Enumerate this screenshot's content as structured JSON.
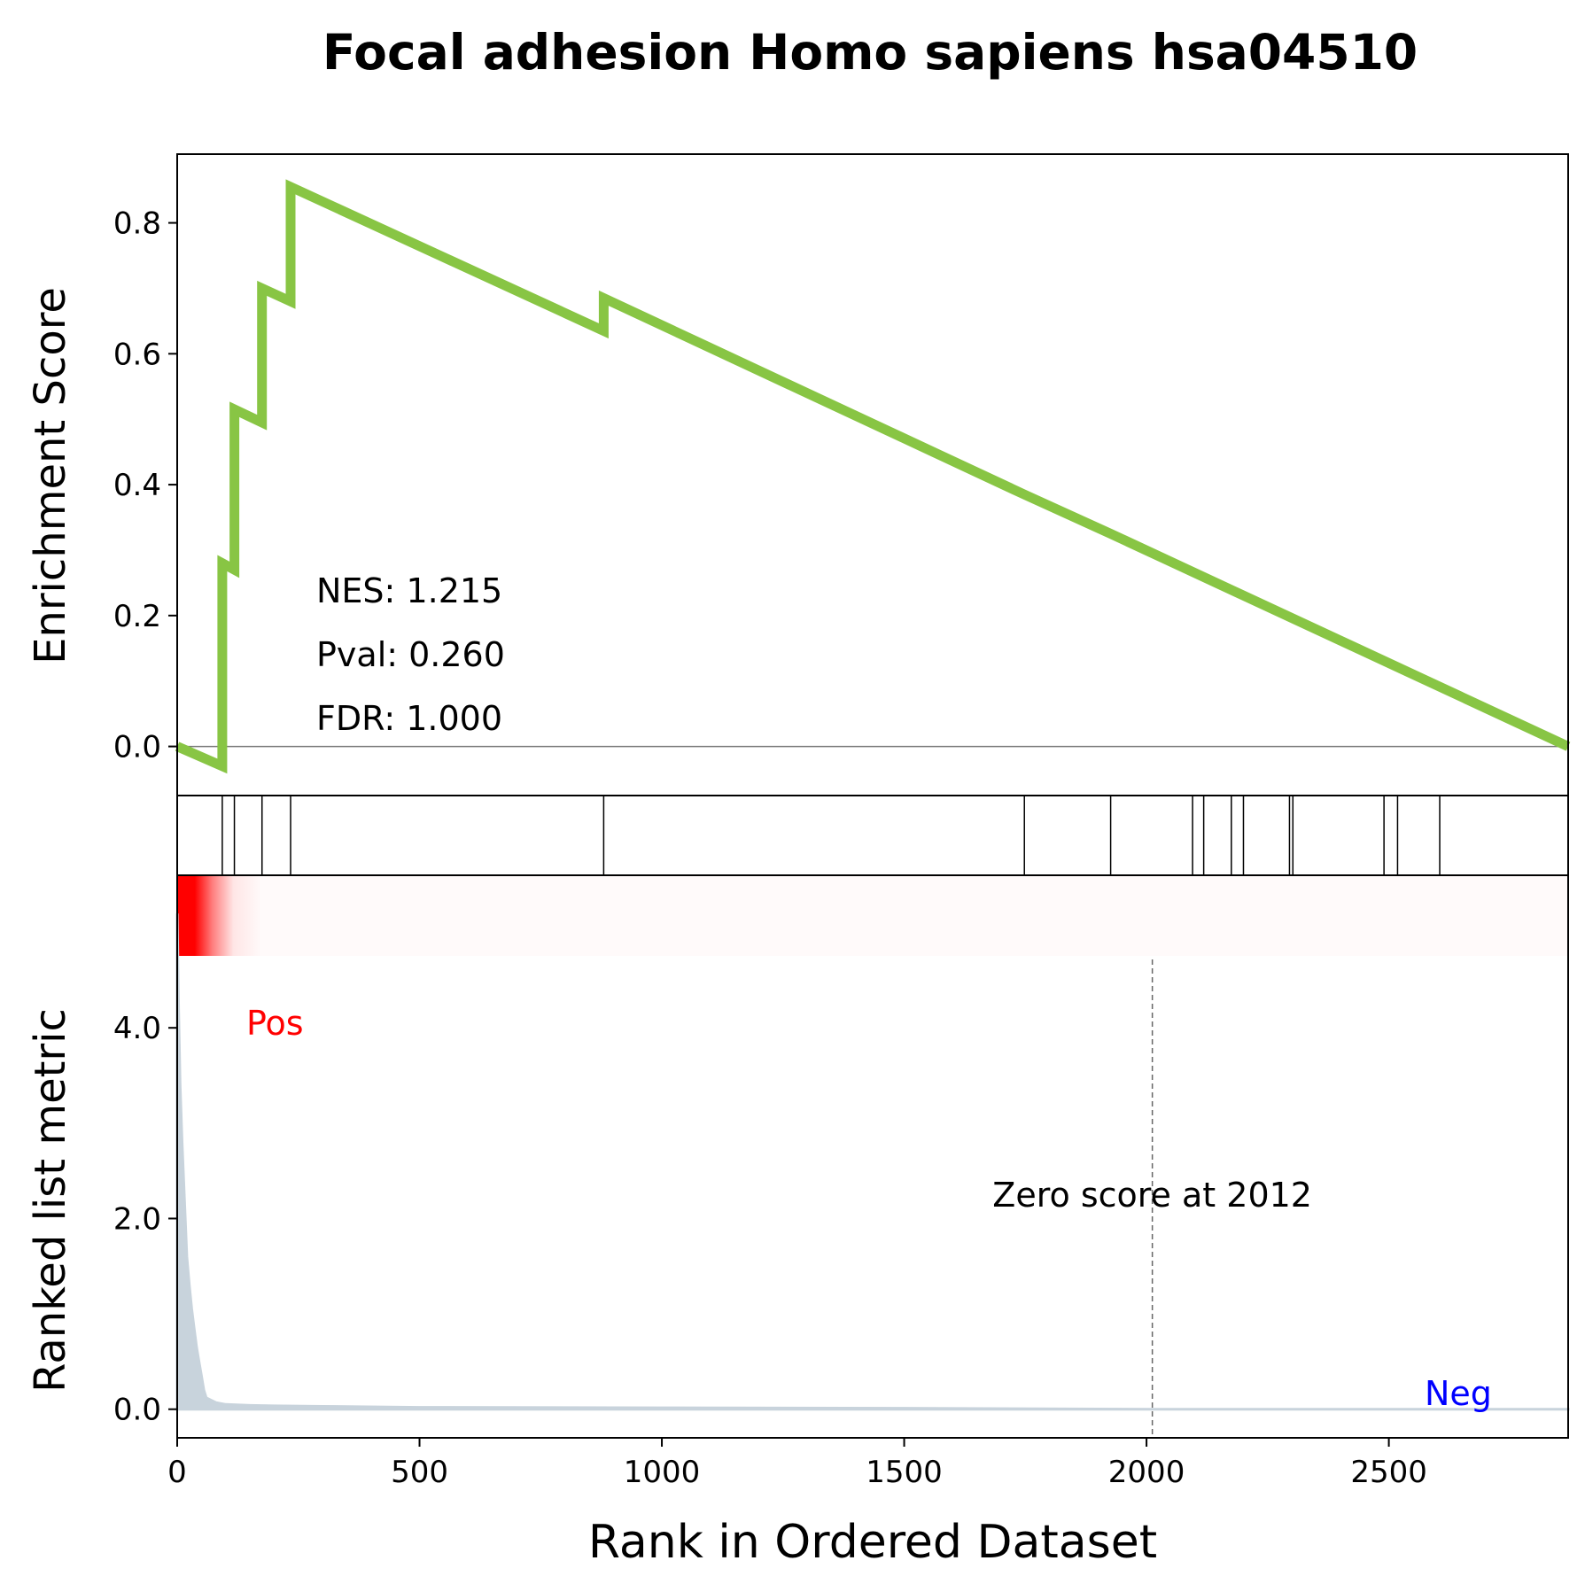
{
  "chart_data": {
    "type": "line",
    "title": "Focal adhesion Homo sapiens hsa04510",
    "xlabel": "Rank in Ordered Dataset",
    "xlim": [
      0,
      2870
    ],
    "x_ticks": [
      0,
      500,
      1000,
      1500,
      2000,
      2500
    ],
    "x_tick_labels": [
      "0",
      "500",
      "1000",
      "1500",
      "2000",
      "2500"
    ],
    "es_panel": {
      "ylabel": "Enrichment Score",
      "ylim": [
        -0.075,
        0.905
      ],
      "y_ticks": [
        0.0,
        0.2,
        0.4,
        0.6,
        0.8
      ],
      "y_tick_labels": [
        "0.0",
        "0.2",
        "0.4",
        "0.6",
        "0.8"
      ],
      "series": [
        {
          "color": "#88c544",
          "x": [
            0,
            93,
            93,
            118,
            118,
            175,
            175,
            234,
            234,
            880,
            880,
            1748,
            1748,
            1926,
            1926,
            2870
          ],
          "y": [
            0.0,
            -0.03,
            0.28,
            0.27,
            0.515,
            0.495,
            0.7,
            0.68,
            0.855,
            0.635,
            0.685,
            0.385,
            0.385,
            0.325,
            0.325,
            0.0
          ]
        }
      ],
      "annotations": [
        "NES: 1.215",
        "Pval: 0.260",
        "FDR: 1.000"
      ]
    },
    "hit_panel": {
      "hits": [
        93,
        118,
        175,
        234,
        880,
        1748,
        1926,
        2095,
        2118,
        2175,
        2200,
        2295,
        2302,
        2490,
        2518,
        2605
      ]
    },
    "rank_panel": {
      "ylabel": "Ranked list metric",
      "ylim": [
        -0.3,
        5.6
      ],
      "y_ticks": [
        0.0,
        2.0,
        4.0
      ],
      "y_tick_labels": [
        "0.0",
        "2.0",
        "4.0"
      ],
      "series": [
        {
          "color": "#c8d3dc",
          "x": [
            0,
            3,
            6,
            10,
            15,
            20,
            25,
            30,
            35,
            40,
            45,
            50,
            55,
            60,
            80,
            100,
            150,
            200,
            300,
            500,
            1000,
            1500,
            2012,
            2500,
            2870
          ],
          "y": [
            5.2,
            4.2,
            3.4,
            2.8,
            2.2,
            1.6,
            1.3,
            1.05,
            0.85,
            0.65,
            0.5,
            0.35,
            0.2,
            0.12,
            0.07,
            0.05,
            0.04,
            0.035,
            0.03,
            0.02,
            0.015,
            0.01,
            0.0,
            0.0,
            0.0
          ]
        }
      ],
      "zero_score_x": 2012,
      "zero_score_label": "Zero score at 2012",
      "pos_label": "Pos",
      "neg_label": "Neg",
      "pos_color": "#ff0000",
      "neg_color": "#0000ff"
    }
  }
}
